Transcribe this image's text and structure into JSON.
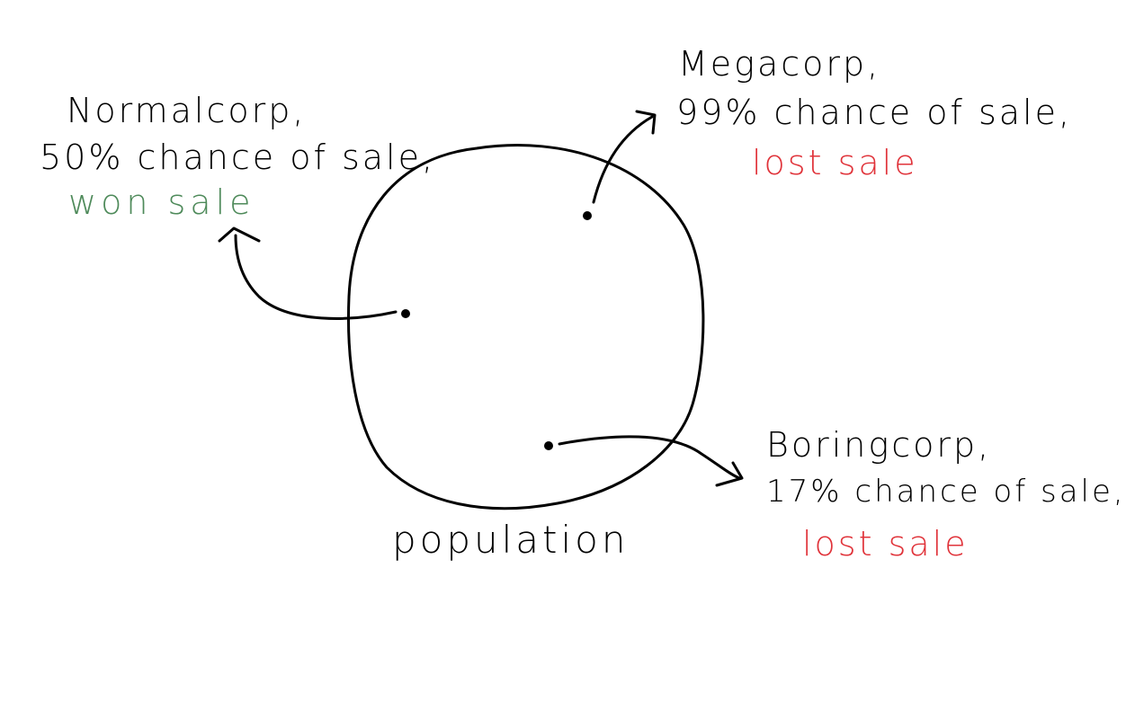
{
  "population_label": "population",
  "accent_colors": {
    "won": "#4e8a5a",
    "lost": "#e0333a",
    "ink": "#000000"
  },
  "companies": [
    {
      "id": "normalcorp",
      "name": "Normalcorp,",
      "chance": "50% chance of sale,",
      "outcome": "won sale",
      "outcome_status": "won"
    },
    {
      "id": "megacorp",
      "name": "Megacorp,",
      "chance": "99% chance of sale,",
      "outcome": "lost sale",
      "outcome_status": "lost"
    },
    {
      "id": "boringcorp",
      "name": "Boringcorp,",
      "chance": "17% chance of sale,",
      "outcome": "lost sale",
      "outcome_status": "lost"
    }
  ]
}
